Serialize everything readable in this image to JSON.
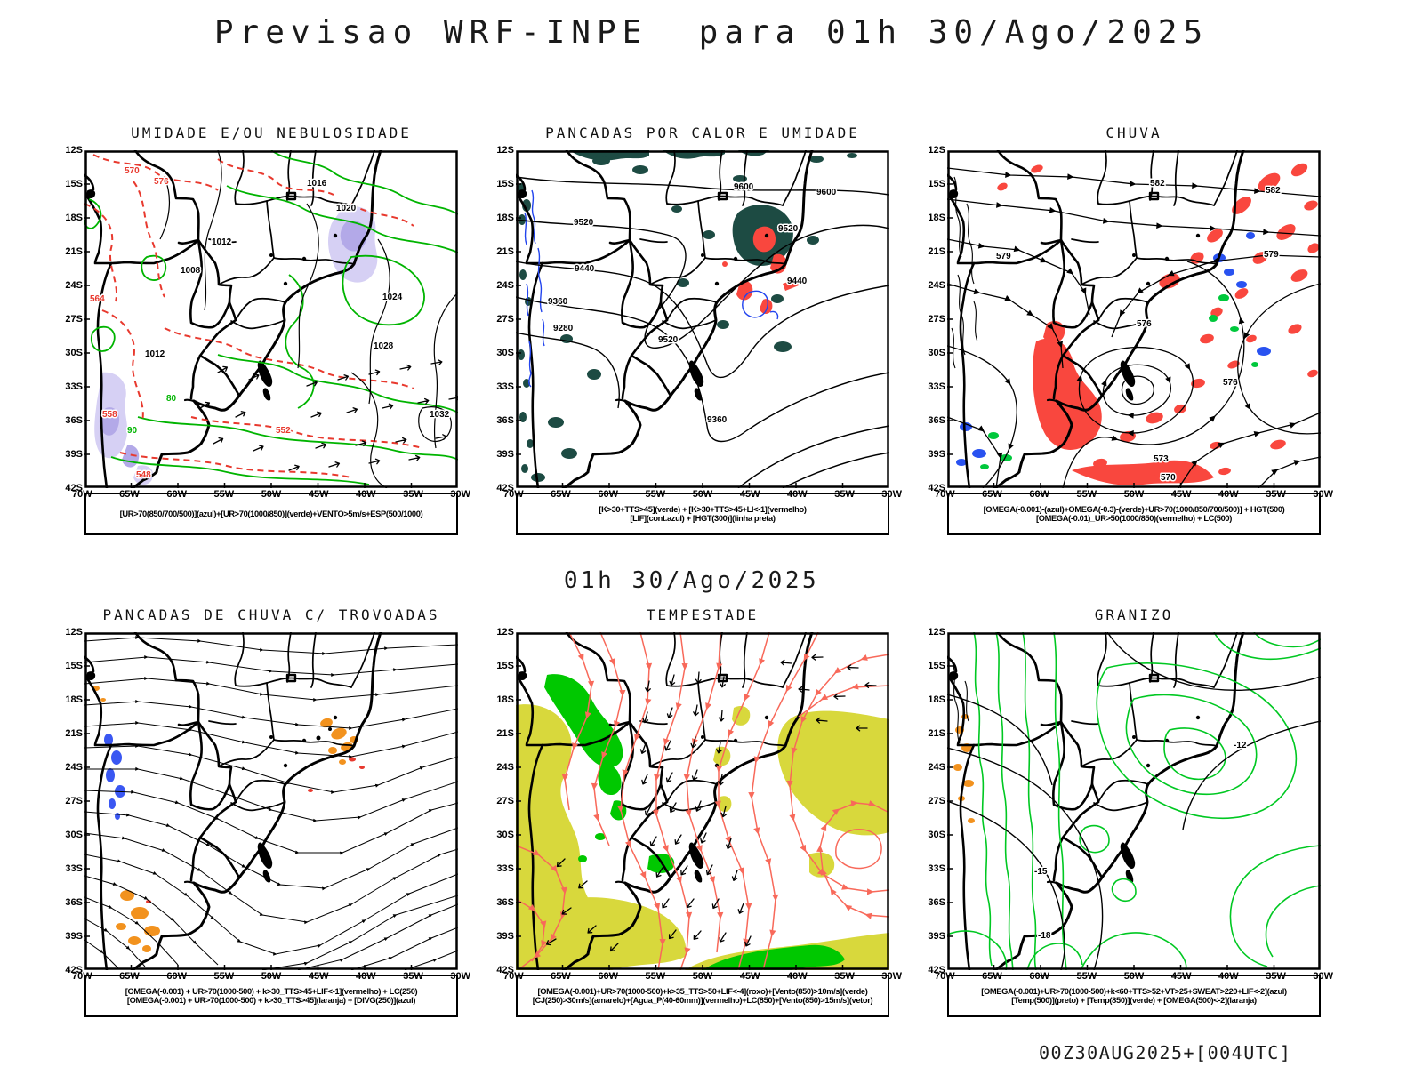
{
  "header": {
    "title": "Previsao WRF-INPE  para 01h 30/Ago/2025"
  },
  "center_timestamp": "01h 30/Ago/2025",
  "footer": {
    "run_info": "00Z30AUG2025+[004UTC]"
  },
  "axes": {
    "lat": [
      "12S",
      "15S",
      "18S",
      "21S",
      "24S",
      "27S",
      "30S",
      "33S",
      "36S",
      "39S",
      "42S"
    ],
    "lon": [
      "70W",
      "65W",
      "60W",
      "55W",
      "50W",
      "45W",
      "40W",
      "35W",
      "30W"
    ]
  },
  "colors": {
    "contour_red": "#e8392e",
    "contour_green": "#00b400",
    "fill_teal": "#1d4b43",
    "fill_red": "#f9473e",
    "fill_yellow": "#d8d83c",
    "fill_green": "#00c800",
    "fill_orange": "#f2921e",
    "fill_blue": "#3a57f2",
    "fill_lavender": "#b3a9e8",
    "streamline_salmon": "#f8695a"
  },
  "panels": [
    {
      "id": "umidade",
      "title": "UMIDADE E/OU NEBULOSIDADE",
      "caption": [
        "[UR>70(850/700/500)](azul)+[UR>70(1000/850)](verde)+VENTO>5m/s+ESP(500/1000)"
      ],
      "contour_labels": {
        "black": [
          "1012",
          "1016",
          "1020",
          "1024",
          "1028",
          "1032",
          "1008",
          "1012"
        ],
        "red": [
          "576",
          "570",
          "564",
          "558",
          "552",
          "548"
        ],
        "green": [
          "80",
          "90"
        ]
      }
    },
    {
      "id": "pancadas-calor-umidade",
      "title": "PANCADAS POR CALOR E UMIDADE",
      "caption": [
        "[K>30+TTS>45](verde) + [K>30+TTS>45+LI<-1](vermelho)",
        "[LIF](cont.azul) + [HGT(300)](linha preta)"
      ],
      "contour_labels": {
        "black": [
          "9600",
          "9600",
          "9520",
          "9520",
          "9520",
          "9440",
          "9440",
          "9360",
          "9360",
          "9280"
        ]
      }
    },
    {
      "id": "chuva",
      "title": "CHUVA",
      "caption": [
        "[OMEGA(-0.001)-(azul)+OMEGA(-0.3)-(verde)+UR>70(1000/850/700/500)] + HGT(500)",
        "[OMEGA(-0.01)_UR>50(1000/850)(vermelho) + LC(500)"
      ],
      "contour_labels": {
        "black": [
          "582",
          "582",
          "579",
          "579",
          "576",
          "576",
          "573",
          "570"
        ]
      }
    },
    {
      "id": "pancadas-chuva-trovoadas",
      "title": "PANCADAS DE CHUVA C/ TROVOADAS",
      "caption": [
        "[OMEGA(-0.001) + UR>70(1000-500) + k>30_TTS>45+LIF<-1](vermelho) + LC(250)",
        "[OMEGA(-0.001) + UR>70(1000-500) + k>30_TTS>45](laranja) + [DIVG(250)](azul)"
      ],
      "contour_labels": {}
    },
    {
      "id": "tempestade",
      "title": "TEMPESTADE",
      "caption": [
        "[OMEGA(-0.001)+UR>70(1000-500)+k>35_TTS>50+LIF<-4](roxo)+[Vento(850)>10m/s](verde)",
        "[CJ(250)>30m/s](amarelo)+[Agua_P(40-60mm)](vermelho)+LC(850)+[Vento(850)>15m/s](vetor)"
      ],
      "contour_labels": {}
    },
    {
      "id": "granizo",
      "title": "GRANIZO",
      "caption": [
        "[OMEGA(-0.001)+UR>70(1000-500)+k<60+TTS>52+VT>25+SWEAT>220+LIF<-2](azul)",
        "[Temp(500)](preto) + [Temp(850)](verde) + [OMEGA(500)<-2](laranja)"
      ],
      "contour_labels": {
        "black": [
          "-12",
          "-15",
          "-18"
        ]
      }
    }
  ]
}
